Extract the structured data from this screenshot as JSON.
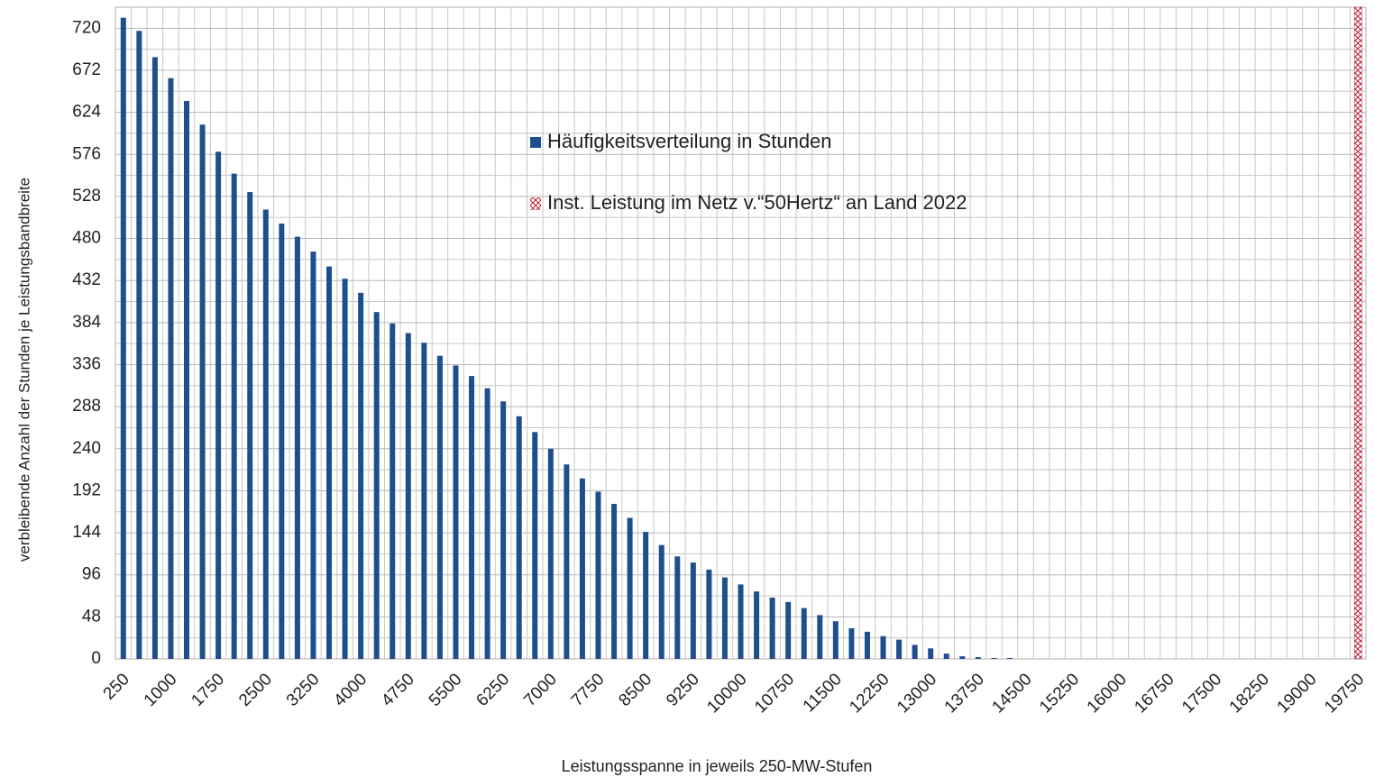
{
  "chart_data": {
    "type": "bar",
    "x_label": "Leistungsspanne in jeweils 250-MW-Stufen",
    "y_label": "verbleibende Anzahl der Stunden je Leistungsbandbreite",
    "categories": [
      "250",
      null,
      null,
      "1000",
      null,
      null,
      "1750",
      null,
      null,
      "2500",
      null,
      null,
      "3250",
      null,
      null,
      "4000",
      null,
      null,
      "4750",
      null,
      null,
      "5500",
      null,
      null,
      "6250",
      null,
      null,
      "7000",
      null,
      null,
      "7750",
      null,
      null,
      "8500",
      null,
      null,
      "9250",
      null,
      null,
      "10000",
      null,
      null,
      "10750",
      null,
      null,
      "11500",
      null,
      null,
      "12250",
      null,
      null,
      "13000",
      null,
      null,
      "13750",
      null,
      null,
      "14500",
      null,
      null,
      "15250",
      null,
      null,
      "16000",
      null,
      null,
      "16750",
      null,
      null,
      "17500",
      null,
      null,
      "18250",
      null,
      null,
      "19000",
      null,
      null,
      "19750"
    ],
    "series": [
      {
        "name": "Häufigkeitsverteilung in Stunden",
        "color": "#1f4e8c",
        "values": [
          732,
          717,
          687,
          663,
          637,
          610,
          579,
          554,
          533,
          513,
          497,
          482,
          465,
          448,
          434,
          418,
          396,
          383,
          372,
          361,
          346,
          335,
          323,
          309,
          294,
          277,
          259,
          240,
          222,
          206,
          191,
          177,
          161,
          145,
          130,
          117,
          110,
          102,
          93,
          85,
          77,
          70,
          65,
          58,
          50,
          43,
          35,
          31,
          26,
          22,
          16,
          12,
          6,
          3,
          2,
          1,
          1,
          0,
          0,
          0,
          0,
          0,
          0,
          0,
          0,
          0,
          0,
          0,
          0,
          0,
          0,
          0,
          0,
          0,
          0,
          0,
          0,
          0,
          0
        ]
      },
      {
        "name": "Inst. Leistung im Netz v.“50Hertz“ an Land 2022",
        "color": "#b22234",
        "values": [
          null,
          null,
          null,
          null,
          null,
          null,
          null,
          null,
          null,
          null,
          null,
          null,
          null,
          null,
          null,
          null,
          null,
          null,
          null,
          null,
          null,
          null,
          null,
          null,
          null,
          null,
          null,
          null,
          null,
          null,
          null,
          null,
          null,
          null,
          null,
          null,
          null,
          null,
          null,
          null,
          null,
          null,
          null,
          null,
          null,
          null,
          null,
          null,
          null,
          null,
          null,
          null,
          null,
          null,
          null,
          null,
          null,
          null,
          null,
          null,
          null,
          null,
          null,
          null,
          null,
          null,
          null,
          null,
          null,
          null,
          null,
          null,
          null,
          null,
          null,
          null,
          null,
          null,
          744
        ]
      }
    ],
    "ylim": [
      0,
      744
    ],
    "yticks": [
      0,
      48,
      96,
      144,
      192,
      240,
      288,
      336,
      384,
      432,
      480,
      528,
      576,
      624,
      672,
      720
    ],
    "grid": true,
    "legend": "upper center"
  }
}
